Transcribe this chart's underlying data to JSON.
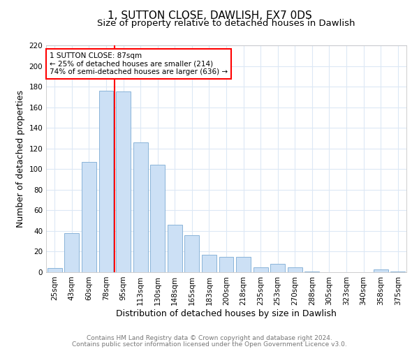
{
  "title": "1, SUTTON CLOSE, DAWLISH, EX7 0DS",
  "subtitle": "Size of property relative to detached houses in Dawlish",
  "xlabel": "Distribution of detached houses by size in Dawlish",
  "ylabel": "Number of detached properties",
  "bar_heights": [
    4,
    38,
    107,
    176,
    175,
    126,
    104,
    46,
    36,
    17,
    15,
    15,
    5,
    8,
    5,
    1,
    0,
    0,
    0,
    3,
    1
  ],
  "bar_color": "#cce0f5",
  "bar_edgecolor": "#8ab4d8",
  "tick_labels": [
    "25sqm",
    "43sqm",
    "60sqm",
    "78sqm",
    "95sqm",
    "113sqm",
    "130sqm",
    "148sqm",
    "165sqm",
    "183sqm",
    "200sqm",
    "218sqm",
    "235sqm",
    "253sqm",
    "270sqm",
    "288sqm",
    "305sqm",
    "323sqm",
    "340sqm",
    "358sqm",
    "375sqm"
  ],
  "ylim": [
    0,
    220
  ],
  "yticks": [
    0,
    20,
    40,
    60,
    80,
    100,
    120,
    140,
    160,
    180,
    200,
    220
  ],
  "red_line_x": 3.5,
  "annotation_line1": "1 SUTTON CLOSE: 87sqm",
  "annotation_line2": "← 25% of detached houses are smaller (214)",
  "annotation_line3": "74% of semi-detached houses are larger (636) →",
  "footer_line1": "Contains HM Land Registry data © Crown copyright and database right 2024.",
  "footer_line2": "Contains public sector information licensed under the Open Government Licence v3.0.",
  "background_color": "#ffffff",
  "grid_color": "#dce8f5",
  "title_fontsize": 11,
  "subtitle_fontsize": 9.5,
  "label_fontsize": 9,
  "tick_fontsize": 7.5,
  "footer_fontsize": 6.5
}
